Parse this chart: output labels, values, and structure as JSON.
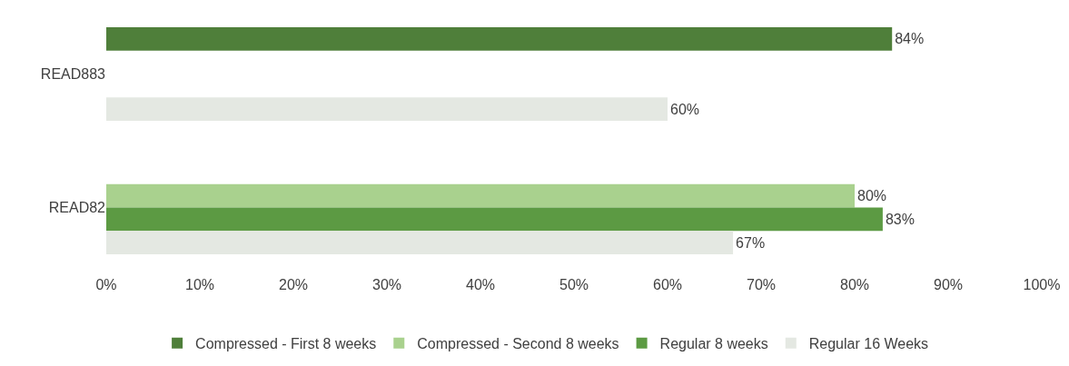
{
  "chart_data": {
    "type": "bar",
    "orientation": "horizontal",
    "categories": [
      "READ883",
      "READ82"
    ],
    "series": [
      {
        "name": "Compressed - First 8 weeks",
        "color": "#4f7f3a",
        "values": [
          84,
          null
        ],
        "value_labels": [
          "84%",
          null
        ]
      },
      {
        "name": "Compressed - Second 8 weeks",
        "color": "#a9d18e",
        "values": [
          null,
          80
        ],
        "value_labels": [
          null,
          "80%"
        ]
      },
      {
        "name": "Regular 8 weeks",
        "color": "#5c9a43",
        "values": [
          null,
          83
        ],
        "value_labels": [
          null,
          "83%"
        ]
      },
      {
        "name": "Regular 16 Weeks",
        "color": "#e4e8e2",
        "values": [
          60,
          67
        ],
        "value_labels": [
          "60%",
          "67%"
        ]
      }
    ],
    "xlim": [
      0,
      100
    ],
    "xticks": [
      {
        "value": 0,
        "label": "0%"
      },
      {
        "value": 10,
        "label": "10%"
      },
      {
        "value": 20,
        "label": "20%"
      },
      {
        "value": 30,
        "label": "30%"
      },
      {
        "value": 40,
        "label": "40%"
      },
      {
        "value": 50,
        "label": "50%"
      },
      {
        "value": 60,
        "label": "60%"
      },
      {
        "value": 70,
        "label": "70%"
      },
      {
        "value": 80,
        "label": "80%"
      },
      {
        "value": 90,
        "label": "90%"
      },
      {
        "value": 100,
        "label": "100%"
      }
    ],
    "grid": false,
    "legend": "bottom"
  }
}
